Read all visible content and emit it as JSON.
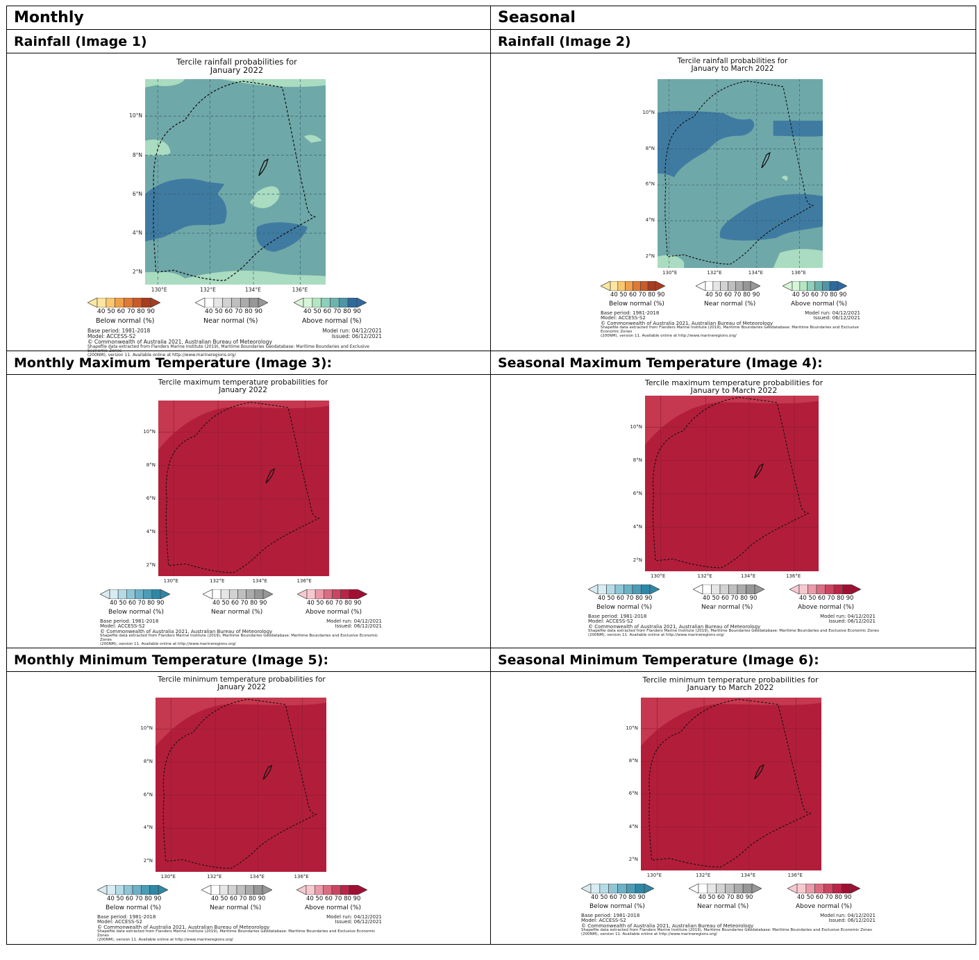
{
  "headers": {
    "monthly": "Monthly",
    "seasonal": "Seasonal"
  },
  "row_labels": {
    "rain_monthly": "Rainfall (Image 1)",
    "rain_seasonal": "Rainfall (Image 2)",
    "tmax_monthly": "Monthly Maximum Temperature (Image 3):",
    "tmax_seasonal": "Seasonal Maximum Temperature (Image 4):",
    "tmin_monthly": "Monthly Minimum Temperature (Image 5):",
    "tmin_seasonal": "Seasonal Minimum Temperature (Image 6):"
  },
  "colors": {
    "rain_base": "#6fa8a8",
    "rain_wet": "#3f7ba1",
    "rain_light": "#a9dcc0",
    "temp_base": "#b21e3a",
    "temp_light": "#c5384f",
    "below_rain": [
      "#fde6a0",
      "#f9c86e",
      "#f0a04a",
      "#df7a35",
      "#c95a2a",
      "#a83c1f"
    ],
    "near": [
      "#ffffff",
      "#e6e6e6",
      "#d2d2d2",
      "#bfbfbf",
      "#ababab",
      "#979797"
    ],
    "above_rain": [
      "#d8f5d8",
      "#b4e6c4",
      "#8ccfba",
      "#6db3ad",
      "#4f95a8",
      "#2f6a9e"
    ],
    "below_temp": [
      "#d8ecf2",
      "#b4dbe6",
      "#8ec6d6",
      "#6cb1c6",
      "#4c9cb6",
      "#2f87a6"
    ],
    "above_temp": [
      "#f6c9d0",
      "#ea9aa8",
      "#db6d81",
      "#cc4560",
      "#bb2446",
      "#a10e32"
    ]
  },
  "common": {
    "ticks": "40 50 60 70 80 90",
    "below": "Below normal (%)",
    "near": "Near normal (%)",
    "above": "Above normal (%)",
    "base_period": "Base period: 1981-2018",
    "model": "Model: ACCESS-S2",
    "copyright": "© Commonwealth of Australia 2021, Australian Bureau of Meteorology",
    "shapefile": "Shapefile data extracted from Flanders Marine Institute (2019), Maritime Boundaries Geodatabase: Maritime Boundaries and Exclusive Economic Zones",
    "shapefile2": "(200NM), version 11. Available online at http://www.marineregions.org/",
    "model_run": "Model run: 04/12/2021",
    "issued": "Issued: 06/12/2021",
    "lat_labels": [
      "10°N",
      "8°N",
      "6°N",
      "4°N",
      "2°N"
    ],
    "lon_labels": [
      "130°E",
      "132°E",
      "134°E",
      "136°E"
    ]
  },
  "figures": {
    "f1": {
      "title1": "Tercile rainfall probabilities for",
      "title2": "January 2022"
    },
    "f2": {
      "title1": "Tercile rainfall probabilities for",
      "title2": "January to March 2022"
    },
    "f3": {
      "title1": "Tercile maximum temperature probabilities for",
      "title2": "January 2022"
    },
    "f4": {
      "title1": "Tercile maximum temperature probabilities for",
      "title2": "January to March 2022"
    },
    "f5": {
      "title1": "Tercile minimum temperature probabilities for",
      "title2": "January 2022"
    },
    "f6": {
      "title1": "Tercile minimum temperature probabilities for",
      "title2": "January to March 2022"
    }
  }
}
